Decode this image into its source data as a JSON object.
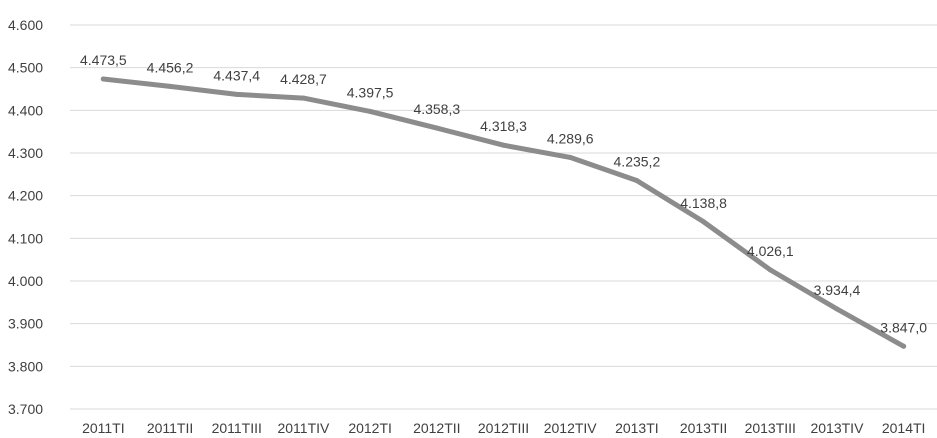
{
  "chart_data": {
    "type": "line",
    "title": "",
    "xlabel": "",
    "ylabel": "",
    "ylim": [
      3700,
      4600
    ],
    "yticks": [
      3700,
      3800,
      3900,
      4000,
      4100,
      4200,
      4300,
      4400,
      4500,
      4600
    ],
    "ytick_labels": [
      "3.700",
      "3.800",
      "3.900",
      "4.000",
      "4.100",
      "4.200",
      "4.300",
      "4.400",
      "4.500",
      "4.600"
    ],
    "grid": true,
    "legend": "none",
    "line_color": "#8c8c8c",
    "categories": [
      "2011TI",
      "2011TII",
      "2011TIII",
      "2011TIV",
      "2012TI",
      "2012TII",
      "2012TIII",
      "2012TIV",
      "2013TI",
      "2013TII",
      "2013TIII",
      "2013TIV",
      "2014TI"
    ],
    "series": [
      {
        "values": [
          4473.5,
          4456.2,
          4437.4,
          4428.7,
          4397.5,
          4358.3,
          4318.3,
          4289.6,
          4235.2,
          4138.8,
          4026.1,
          3934.4,
          3847.0
        ],
        "labels": [
          "4.473,5",
          "4.456,2",
          "4.437,4",
          "4.428,7",
          "4.397,5",
          "4.358,3",
          "4.318,3",
          "4.289,6",
          "4.235,2",
          "4.138,8",
          "4.026,1",
          "3.934,4",
          "3.847,0"
        ]
      }
    ]
  }
}
